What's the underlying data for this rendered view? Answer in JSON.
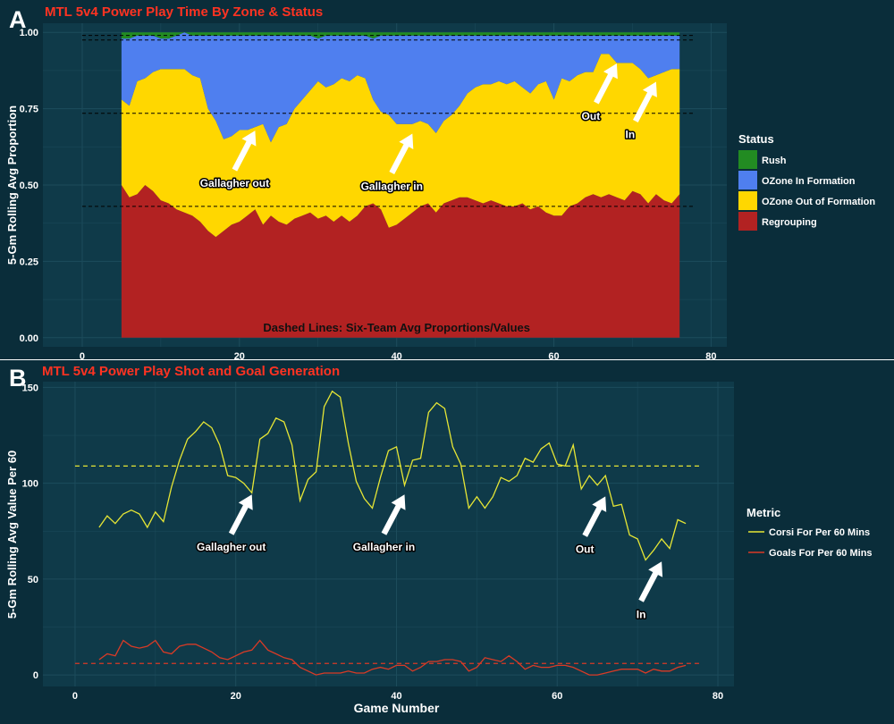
{
  "colors": {
    "background": "#0a2d3a",
    "panel": "#0f3a49",
    "grid": "#1d4c5c",
    "title": "#ff3322",
    "text": "#ffffff",
    "dark_text": "#111111",
    "rush": "#228b22",
    "ozone_in": "#4f7fef",
    "ozone_out": "#ffd700",
    "regroup": "#b22222",
    "corsi": "#e6e635",
    "goals": "#d93a26"
  },
  "chart_data": [
    {
      "panel_letter": "A",
      "type": "area",
      "stacked": true,
      "title": "MTL  5v4 Power Play Time By Zone & Status",
      "ylabel": "5-Gm Rolling Avg Proportion",
      "xlabel": "",
      "xlim": [
        -5,
        82
      ],
      "ylim": [
        -0.03,
        1.03
      ],
      "x_ticks": [
        0,
        20,
        40,
        60,
        80
      ],
      "y_ticks": [
        0.0,
        0.25,
        0.5,
        0.75,
        1.0
      ],
      "y_tick_labels": [
        "0.00",
        "0.25",
        "0.50",
        "0.75",
        "1.00"
      ],
      "legend_title": "Status",
      "legend_position": "right",
      "annotation": "Dashed Lines: Six-Team Avg Proportions/Values",
      "x": [
        5,
        6,
        7,
        8,
        9,
        10,
        11,
        12,
        13,
        14,
        15,
        16,
        17,
        18,
        19,
        20,
        21,
        22,
        23,
        24,
        25,
        26,
        27,
        28,
        29,
        30,
        31,
        32,
        33,
        34,
        35,
        36,
        37,
        38,
        39,
        40,
        41,
        42,
        43,
        44,
        45,
        46,
        47,
        48,
        49,
        50,
        51,
        52,
        53,
        54,
        55,
        56,
        57,
        58,
        59,
        60,
        61,
        62,
        63,
        64,
        65,
        66,
        67,
        68,
        69,
        70,
        71,
        72,
        73,
        74,
        75,
        76
      ],
      "series": [
        {
          "name": "Regrouping",
          "color_key": "regroup",
          "values": [
            0.5,
            0.46,
            0.47,
            0.5,
            0.48,
            0.45,
            0.44,
            0.42,
            0.41,
            0.4,
            0.38,
            0.35,
            0.33,
            0.35,
            0.37,
            0.38,
            0.4,
            0.42,
            0.37,
            0.4,
            0.38,
            0.37,
            0.39,
            0.4,
            0.41,
            0.39,
            0.4,
            0.38,
            0.4,
            0.38,
            0.4,
            0.43,
            0.44,
            0.42,
            0.36,
            0.37,
            0.39,
            0.41,
            0.43,
            0.44,
            0.41,
            0.44,
            0.45,
            0.46,
            0.46,
            0.45,
            0.44,
            0.45,
            0.44,
            0.43,
            0.43,
            0.44,
            0.42,
            0.43,
            0.41,
            0.4,
            0.4,
            0.43,
            0.44,
            0.46,
            0.47,
            0.46,
            0.47,
            0.46,
            0.45,
            0.48,
            0.47,
            0.44,
            0.47,
            0.45,
            0.44,
            0.47
          ]
        },
        {
          "name": "OZone Out of Formation",
          "color_key": "ozone_out",
          "values": [
            0.28,
            0.3,
            0.37,
            0.35,
            0.39,
            0.43,
            0.44,
            0.46,
            0.47,
            0.46,
            0.47,
            0.4,
            0.38,
            0.3,
            0.29,
            0.3,
            0.28,
            0.27,
            0.33,
            0.24,
            0.31,
            0.33,
            0.36,
            0.38,
            0.4,
            0.45,
            0.42,
            0.45,
            0.45,
            0.46,
            0.46,
            0.42,
            0.34,
            0.32,
            0.37,
            0.33,
            0.31,
            0.29,
            0.28,
            0.26,
            0.26,
            0.27,
            0.28,
            0.3,
            0.34,
            0.37,
            0.39,
            0.38,
            0.4,
            0.4,
            0.41,
            0.38,
            0.38,
            0.4,
            0.43,
            0.38,
            0.45,
            0.41,
            0.42,
            0.41,
            0.4,
            0.47,
            0.46,
            0.44,
            0.45,
            0.42,
            0.41,
            0.41,
            0.39,
            0.42,
            0.44,
            0.41
          ]
        },
        {
          "name": "OZone In Formation",
          "color_key": "ozone_in",
          "values": [
            0.2,
            0.22,
            0.15,
            0.14,
            0.12,
            0.1,
            0.1,
            0.11,
            0.12,
            0.13,
            0.14,
            0.24,
            0.28,
            0.34,
            0.33,
            0.31,
            0.31,
            0.3,
            0.29,
            0.35,
            0.3,
            0.29,
            0.24,
            0.21,
            0.18,
            0.14,
            0.17,
            0.16,
            0.14,
            0.15,
            0.13,
            0.14,
            0.2,
            0.25,
            0.26,
            0.29,
            0.29,
            0.29,
            0.28,
            0.29,
            0.32,
            0.28,
            0.26,
            0.23,
            0.19,
            0.17,
            0.16,
            0.16,
            0.15,
            0.16,
            0.15,
            0.17,
            0.19,
            0.16,
            0.15,
            0.21,
            0.14,
            0.15,
            0.13,
            0.12,
            0.12,
            0.06,
            0.06,
            0.09,
            0.09,
            0.09,
            0.11,
            0.14,
            0.13,
            0.12,
            0.11,
            0.11
          ]
        },
        {
          "name": "Rush",
          "color_key": "rush",
          "values": [
            0.02,
            0.02,
            0.01,
            0.01,
            0.01,
            0.02,
            0.02,
            0.01,
            0.0,
            0.01,
            0.01,
            0.01,
            0.01,
            0.01,
            0.01,
            0.01,
            0.01,
            0.01,
            0.01,
            0.01,
            0.01,
            0.01,
            0.01,
            0.01,
            0.01,
            0.02,
            0.01,
            0.01,
            0.01,
            0.01,
            0.01,
            0.01,
            0.02,
            0.01,
            0.01,
            0.01,
            0.01,
            0.01,
            0.01,
            0.01,
            0.01,
            0.01,
            0.01,
            0.01,
            0.01,
            0.01,
            0.01,
            0.01,
            0.01,
            0.01,
            0.01,
            0.01,
            0.01,
            0.01,
            0.01,
            0.01,
            0.01,
            0.01,
            0.01,
            0.01,
            0.01,
            0.01,
            0.01,
            0.01,
            0.01,
            0.01,
            0.01,
            0.01,
            0.01,
            0.01,
            0.01,
            0.01
          ]
        }
      ],
      "reference_lines": [
        0.43,
        0.735,
        0.975,
        0.99
      ],
      "arrows": [
        {
          "label": "Gallagher out",
          "x": 22,
          "y": 0.69
        },
        {
          "label": "Gallagher in",
          "x": 42,
          "y": 0.68
        },
        {
          "label": "Out",
          "x": 68,
          "y": 0.91
        },
        {
          "label": "In",
          "x": 73,
          "y": 0.85
        }
      ]
    },
    {
      "panel_letter": "B",
      "type": "line",
      "title": "MTL  5v4 Power Play Shot and Goal Generation",
      "ylabel": "5-Gm Rolling Avg Value Per 60",
      "xlabel": "Game Number",
      "xlim": [
        -4,
        82
      ],
      "ylim": [
        -6,
        153
      ],
      "x_ticks": [
        0,
        20,
        40,
        60,
        80
      ],
      "y_ticks": [
        0,
        50,
        100,
        150
      ],
      "y_tick_labels": [
        "0",
        "50",
        "100",
        "150"
      ],
      "legend_title": "Metric",
      "legend_position": "right",
      "x": [
        3,
        4,
        5,
        6,
        7,
        8,
        9,
        10,
        11,
        12,
        13,
        14,
        15,
        16,
        17,
        18,
        19,
        20,
        21,
        22,
        23,
        24,
        25,
        26,
        27,
        28,
        29,
        30,
        31,
        32,
        33,
        34,
        35,
        36,
        37,
        38,
        39,
        40,
        41,
        42,
        43,
        44,
        45,
        46,
        47,
        48,
        49,
        50,
        51,
        52,
        53,
        54,
        55,
        56,
        57,
        58,
        59,
        60,
        61,
        62,
        63,
        64,
        65,
        66,
        67,
        68,
        69,
        70,
        71,
        72,
        73,
        74,
        75,
        76
      ],
      "series": [
        {
          "name": "Corsi For Per 60 Mins",
          "color_key": "corsi",
          "values": [
            77,
            83,
            79,
            84,
            86,
            84,
            77,
            85,
            80,
            98,
            112,
            123,
            127,
            132,
            129,
            120,
            104,
            103,
            100,
            95,
            123,
            126,
            134,
            132,
            120,
            91,
            102,
            106,
            140,
            148,
            145,
            121,
            101,
            92,
            87,
            103,
            117,
            119,
            99,
            112,
            113,
            137,
            142,
            139,
            119,
            110,
            87,
            93,
            87,
            93,
            103,
            101,
            104,
            113,
            111,
            118,
            121,
            110,
            109,
            120,
            97,
            104,
            99,
            104,
            88,
            89,
            73,
            71,
            60,
            65,
            71,
            66,
            81,
            79
          ]
        },
        {
          "name": "Goals For Per 60 Mins",
          "color_key": "goals",
          "values": [
            8,
            11,
            10,
            18,
            15,
            14,
            15,
            18,
            12,
            11,
            15,
            16,
            16,
            14,
            12,
            9,
            8,
            10,
            12,
            13,
            18,
            13,
            11,
            9,
            8,
            4,
            2,
            0,
            1,
            1,
            1,
            2,
            1,
            1,
            3,
            4,
            3,
            5,
            5,
            2,
            4,
            7,
            7,
            8,
            8,
            7,
            2,
            4,
            9,
            8,
            7,
            10,
            7,
            3,
            5,
            4,
            4,
            5,
            5,
            4,
            2,
            0,
            0,
            1,
            2,
            3,
            3,
            3,
            1,
            3,
            2,
            2,
            4,
            5
          ]
        }
      ],
      "reference_lines": [
        {
          "series": "Corsi For Per 60 Mins",
          "value": 109
        },
        {
          "series": "Goals For Per 60 Mins",
          "value": 6
        }
      ],
      "arrows": [
        {
          "label": "Gallagher out",
          "x": 22,
          "y": 96
        },
        {
          "label": "Gallagher in",
          "x": 41,
          "y": 96
        },
        {
          "label": "Out",
          "x": 66,
          "y": 95
        },
        {
          "label": "In",
          "x": 73,
          "y": 61
        }
      ]
    }
  ]
}
